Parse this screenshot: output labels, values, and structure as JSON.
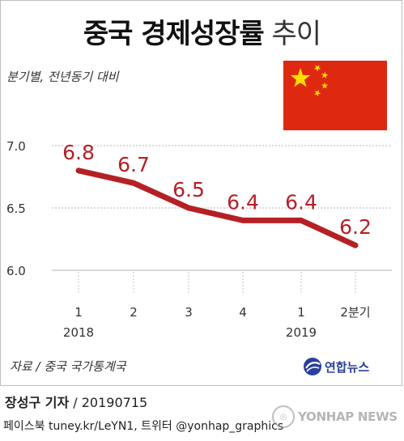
{
  "title": {
    "main": "중국 경제성장률",
    "trend": "추이"
  },
  "subtitle": "분기별, 전년동기 대비",
  "flag": {
    "name": "china-flag",
    "red": "#de2910",
    "yellow": "#ffde00"
  },
  "source": "자료 / 중국 국가통계국",
  "logo_text": "연합뉴스",
  "byline": {
    "reporter": "장성구 기자",
    "date": "/ 20190715"
  },
  "contact": "페이스북 tuney.kr/LeYN1, 트위터 @yonhap_graphics",
  "watermark": "YONHAP NEWS",
  "chart_data": {
    "type": "line",
    "x": [
      "1",
      "2",
      "3",
      "4",
      "1",
      "2분기"
    ],
    "years": [
      {
        "label": "2018",
        "index": 0
      },
      {
        "label": "2019",
        "index": 4
      }
    ],
    "values": [
      6.8,
      6.7,
      6.5,
      6.4,
      6.4,
      6.2
    ],
    "value_labels": [
      "6.8",
      "6.7",
      "6.5",
      "6.4",
      "6.4",
      "6.2"
    ],
    "ylim": [
      6.0,
      7.0
    ],
    "yticks": [
      {
        "value": 7.0,
        "label": "7.0"
      },
      {
        "value": 6.5,
        "label": "6.5"
      },
      {
        "value": 6.0,
        "label": "6.0"
      }
    ],
    "grid": true,
    "line_color": "#b52025",
    "label_color": "#b52025"
  }
}
